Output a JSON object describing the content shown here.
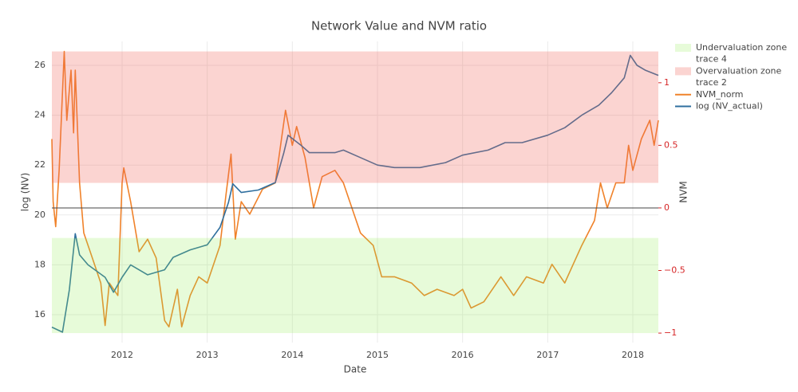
{
  "chart_data": {
    "type": "line",
    "title": "Network Value and NVM ratio",
    "x_label": "Date",
    "y_label": "log (NV)",
    "y2_label": "NVM",
    "xlim": [
      2011.175,
      2018.3
    ],
    "xticks": [
      2012,
      2013,
      2014,
      2015,
      2016,
      2017,
      2018
    ],
    "ylim": [
      14.88,
      26.96
    ],
    "yticks": [
      16,
      18,
      20,
      22,
      24,
      26
    ],
    "y2lim": [
      -1.076,
      1.33
    ],
    "y2ticks": [
      {
        "value": -1,
        "label": "−1"
      },
      {
        "value": -0.5,
        "label": "−0.5"
      },
      0,
      0.5,
      1
    ],
    "y2_tick_color": "#d62728",
    "y2_zeroline": true,
    "grid": true,
    "zones": [
      {
        "name": "Undervaluation zone",
        "edge_name": "trace 4",
        "color": "rgba(144,238,80,0.22)",
        "axis": "y2",
        "range": [
          -1,
          -0.24
        ]
      },
      {
        "name": "Overvaluation zone",
        "edge_name": "trace 2",
        "color": "rgba(240,100,90,0.28)",
        "axis": "y2",
        "range": [
          0.2,
          1.25
        ]
      }
    ],
    "series": [
      {
        "name": "NVM_norm",
        "color": "#f0822a",
        "axis": "y2",
        "x": [
          2011.175,
          2011.19,
          2011.22,
          2011.26,
          2011.32,
          2011.35,
          2011.4,
          2011.43,
          2011.45,
          2011.5,
          2011.55,
          2011.65,
          2011.75,
          2011.8,
          2011.85,
          2011.95,
          2012.0,
          2012.02,
          2012.1,
          2012.2,
          2012.3,
          2012.4,
          2012.5,
          2012.55,
          2012.65,
          2012.7,
          2012.8,
          2012.9,
          2013.0,
          2013.15,
          2013.22,
          2013.28,
          2013.33,
          2013.4,
          2013.5,
          2013.65,
          2013.8,
          2013.92,
          2014.0,
          2014.05,
          2014.15,
          2014.25,
          2014.35,
          2014.5,
          2014.6,
          2014.7,
          2014.8,
          2014.95,
          2015.05,
          2015.2,
          2015.4,
          2015.55,
          2015.7,
          2015.9,
          2016.0,
          2016.1,
          2016.25,
          2016.45,
          2016.6,
          2016.75,
          2016.95,
          2017.05,
          2017.2,
          2017.3,
          2017.4,
          2017.55,
          2017.62,
          2017.7,
          2017.8,
          2017.9,
          2017.95,
          2018.0,
          2018.1,
          2018.2,
          2018.25,
          2018.3
        ],
        "values": [
          0.55,
          0.05,
          -0.15,
          0.3,
          1.25,
          0.7,
          1.1,
          0.6,
          1.1,
          0.2,
          -0.2,
          -0.4,
          -0.6,
          -0.94,
          -0.6,
          -0.7,
          0.2,
          0.32,
          0.05,
          -0.35,
          -0.25,
          -0.4,
          -0.9,
          -0.95,
          -0.65,
          -0.95,
          -0.7,
          -0.55,
          -0.6,
          -0.3,
          0.1,
          0.43,
          -0.25,
          0.05,
          -0.05,
          0.15,
          0.2,
          0.78,
          0.5,
          0.65,
          0.4,
          0.0,
          0.25,
          0.3,
          0.2,
          0.0,
          -0.2,
          -0.3,
          -0.55,
          -0.55,
          -0.6,
          -0.7,
          -0.65,
          -0.7,
          -0.65,
          -0.8,
          -0.75,
          -0.55,
          -0.7,
          -0.55,
          -0.6,
          -0.45,
          -0.6,
          -0.45,
          -0.3,
          -0.1,
          0.2,
          0.0,
          0.2,
          0.2,
          0.5,
          0.3,
          0.55,
          0.7,
          0.5,
          0.7
        ]
      },
      {
        "name": "log (NV_actual)",
        "color": "#2f6f9f",
        "axis": "y",
        "x": [
          2011.175,
          2011.3,
          2011.38,
          2011.45,
          2011.5,
          2011.6,
          2011.8,
          2011.9,
          2012.0,
          2012.1,
          2012.3,
          2012.5,
          2012.6,
          2012.8,
          2013.0,
          2013.15,
          2013.25,
          2013.3,
          2013.4,
          2013.6,
          2013.8,
          2013.9,
          2013.95,
          2014.1,
          2014.2,
          2014.5,
          2014.6,
          2014.8,
          2015.0,
          2015.2,
          2015.5,
          2015.8,
          2016.0,
          2016.3,
          2016.5,
          2016.7,
          2017.0,
          2017.2,
          2017.4,
          2017.6,
          2017.75,
          2017.9,
          2017.97,
          2018.05,
          2018.15,
          2018.3
        ],
        "values": [
          15.5,
          15.3,
          17.0,
          19.25,
          18.4,
          18.0,
          17.5,
          16.9,
          17.5,
          18.0,
          17.6,
          17.8,
          18.3,
          18.6,
          18.8,
          19.5,
          20.5,
          21.25,
          20.9,
          21.0,
          21.3,
          22.5,
          23.2,
          22.8,
          22.5,
          22.5,
          22.6,
          22.3,
          22.0,
          21.9,
          21.9,
          22.1,
          22.4,
          22.6,
          22.9,
          22.9,
          23.2,
          23.5,
          24.0,
          24.4,
          24.9,
          25.5,
          26.4,
          26.0,
          25.8,
          25.6
        ]
      }
    ]
  }
}
